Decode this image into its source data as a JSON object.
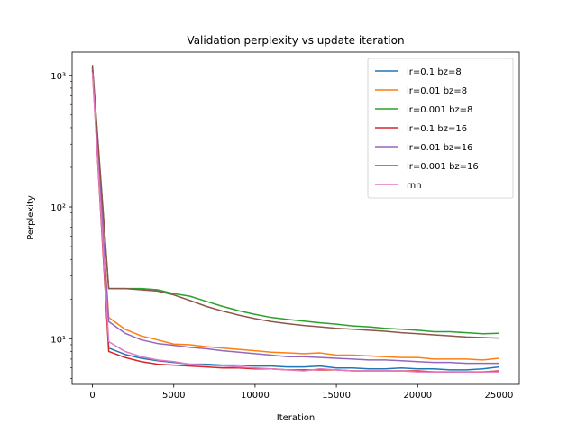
{
  "chart_data": {
    "type": "line",
    "title": "Validation perplexity vs update iteration",
    "xlabel": "Iteration",
    "ylabel": "Perplexity",
    "yscale": "log",
    "xlim": [
      -1250,
      26250
    ],
    "ylim": [
      4.5,
      1500
    ],
    "x_ticks": [
      0,
      5000,
      10000,
      15000,
      20000,
      25000
    ],
    "x_tick_labels": [
      "0",
      "5000",
      "10000",
      "15000",
      "20000",
      "25000"
    ],
    "y_ticks": [
      10,
      100,
      1000
    ],
    "y_tick_labels": [
      "10¹",
      "10²",
      "10³"
    ],
    "legend_position": "top-right",
    "grid": false,
    "x": [
      0,
      1000,
      2000,
      3000,
      4000,
      5000,
      6000,
      7000,
      8000,
      9000,
      10000,
      11000,
      12000,
      13000,
      14000,
      15000,
      16000,
      17000,
      18000,
      19000,
      20000,
      21000,
      22000,
      23000,
      24000,
      25000
    ],
    "series": [
      {
        "name": "lr=0.1 bz=8",
        "color": "#1f77b4",
        "values": [
          1150,
          8.5,
          7.6,
          7.1,
          6.8,
          6.6,
          6.4,
          6.4,
          6.3,
          6.3,
          6.2,
          6.2,
          6.1,
          6.1,
          6.2,
          6.0,
          6.0,
          5.9,
          5.9,
          6.0,
          5.9,
          5.9,
          5.8,
          5.8,
          5.9,
          6.1
        ]
      },
      {
        "name": "lr=0.01 bz=8",
        "color": "#ff7f0e",
        "values": [
          1100,
          14.5,
          11.8,
          10.5,
          9.8,
          9.1,
          9.0,
          8.7,
          8.5,
          8.3,
          8.1,
          7.9,
          7.8,
          7.7,
          7.8,
          7.5,
          7.5,
          7.4,
          7.3,
          7.2,
          7.2,
          7.0,
          7.0,
          7.0,
          6.9,
          7.1
        ]
      },
      {
        "name": "lr=0.001 bz=8",
        "color": "#2ca02c",
        "values": [
          1150,
          24,
          24,
          24,
          23.5,
          22,
          21,
          19.2,
          17.6,
          16.3,
          15.3,
          14.5,
          14.0,
          13.6,
          13.2,
          12.9,
          12.5,
          12.3,
          12.0,
          11.8,
          11.6,
          11.3,
          11.3,
          11.1,
          10.9,
          11.0
        ]
      },
      {
        "name": "lr=0.1 bz=16",
        "color": "#d62728",
        "values": [
          1100,
          8.0,
          7.2,
          6.7,
          6.4,
          6.3,
          6.2,
          6.1,
          6.0,
          6.0,
          5.9,
          5.9,
          5.8,
          5.8,
          5.8,
          5.8,
          5.7,
          5.7,
          5.7,
          5.7,
          5.7,
          5.6,
          5.6,
          5.6,
          5.6,
          5.7
        ]
      },
      {
        "name": "lr=0.01 bz=16",
        "color": "#9467bd",
        "values": [
          1150,
          13.5,
          11,
          9.8,
          9.2,
          8.9,
          8.6,
          8.4,
          8.1,
          7.9,
          7.7,
          7.5,
          7.3,
          7.3,
          7.2,
          7.1,
          7.0,
          6.9,
          6.9,
          6.8,
          6.7,
          6.6,
          6.6,
          6.5,
          6.5,
          6.5
        ]
      },
      {
        "name": "lr=0.001 bz=16",
        "color": "#8c564b",
        "values": [
          1200,
          24,
          24,
          23.5,
          23,
          21.5,
          19.5,
          17.6,
          16.2,
          15.1,
          14.2,
          13.5,
          13.0,
          12.6,
          12.3,
          12.0,
          11.8,
          11.6,
          11.4,
          11.1,
          10.9,
          10.7,
          10.5,
          10.3,
          10.2,
          10.1
        ]
      },
      {
        "name": "rnn",
        "color": "#e377c2",
        "values": [
          1050,
          9.5,
          8.0,
          7.3,
          6.9,
          6.7,
          6.4,
          6.3,
          6.2,
          6.1,
          6.0,
          5.9,
          5.8,
          5.7,
          5.9,
          5.8,
          5.7,
          5.7,
          5.7,
          5.7,
          5.6,
          5.6,
          5.6,
          5.6,
          5.6,
          5.6
        ]
      }
    ]
  }
}
